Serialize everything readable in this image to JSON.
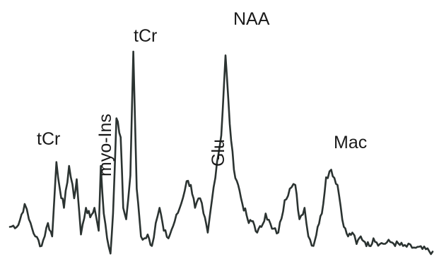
{
  "chart_data": {
    "type": "line",
    "title": "",
    "xlabel": "",
    "ylabel": "",
    "grid": false,
    "legend": "none",
    "colors": {
      "trace": "#2b3331",
      "background": "#ffffff",
      "labels": "#1a1a1a"
    },
    "peak_labels": [
      {
        "id": "tcr_small",
        "text": "tCr",
        "rotated": false
      },
      {
        "id": "myo_ins",
        "text": "myo-Ins",
        "rotated": true
      },
      {
        "id": "tcr_large",
        "text": "tCr",
        "rotated": false
      },
      {
        "id": "glu",
        "text": "Glu",
        "rotated": true
      },
      {
        "id": "naa",
        "text": "NAA",
        "rotated": false
      },
      {
        "id": "mac",
        "text": "Mac",
        "rotated": false
      }
    ],
    "series": [
      {
        "x": [
          0,
          0.02,
          0.035,
          0.045,
          0.06,
          0.075,
          0.09,
          0.1,
          0.11,
          0.118,
          0.128,
          0.14,
          0.152,
          0.158,
          0.168,
          0.18,
          0.19,
          0.2,
          0.21,
          0.215,
          0.222,
          0.23,
          0.238,
          0.244,
          0.252,
          0.262,
          0.268,
          0.275,
          0.285,
          0.292,
          0.3,
          0.31,
          0.318,
          0.326,
          0.336,
          0.345,
          0.354,
          0.364,
          0.375,
          0.39,
          0.405,
          0.418,
          0.428,
          0.438,
          0.45,
          0.458,
          0.468,
          0.478,
          0.49,
          0.5,
          0.51,
          0.52,
          0.53,
          0.54,
          0.55,
          0.56,
          0.565,
          0.575,
          0.585,
          0.595,
          0.605,
          0.62,
          0.635,
          0.65,
          0.662,
          0.675,
          0.685,
          0.697,
          0.706,
          0.718,
          0.728,
          0.738,
          0.748,
          0.76,
          0.775,
          0.79,
          0.8,
          0.81,
          0.82,
          0.83,
          0.84,
          0.85,
          0.86,
          0.875,
          0.9,
          0.93,
          0.96,
          1
        ],
        "y": [
          0.08,
          0.09,
          0.2,
          0.12,
          0.03,
          -0.02,
          0.1,
          0.03,
          0.42,
          0.28,
          0.18,
          0.4,
          0.23,
          0.33,
          0.04,
          0.18,
          0.13,
          0.18,
          0.06,
          0.4,
          0.15,
          0.02,
          -0.06,
          0.15,
          0.65,
          0.55,
          0.18,
          0.12,
          0.35,
          1.0,
          0.28,
          0.03,
          0.02,
          0.04,
          -0.02,
          0.1,
          0.18,
          0.06,
          0.02,
          0.11,
          0.2,
          0.32,
          0.3,
          0.18,
          0.23,
          0.15,
          0.05,
          0.22,
          0.42,
          0.56,
          0.98,
          0.62,
          0.38,
          0.3,
          0.2,
          0.14,
          0.1,
          0.11,
          0.05,
          0.08,
          0.15,
          0.07,
          0.05,
          0.22,
          0.28,
          0.3,
          0.12,
          0.18,
          0.03,
          -0.02,
          0.08,
          0.15,
          0.34,
          0.38,
          0.3,
          0.08,
          0.03,
          0.05,
          -0.01,
          0.03,
          0.0,
          -0.02,
          0.02,
          -0.01,
          0.0,
          -0.02,
          -0.03,
          -0.05
        ]
      }
    ]
  }
}
